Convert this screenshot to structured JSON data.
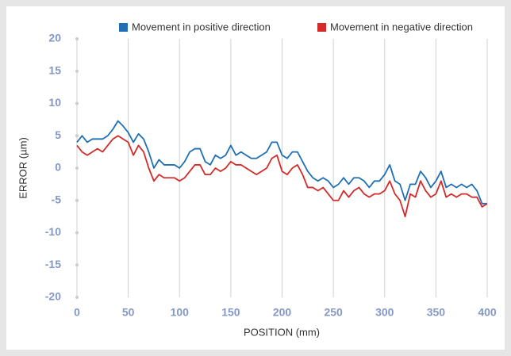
{
  "chart_data": {
    "type": "line",
    "x": [
      0,
      5,
      10,
      15,
      20,
      25,
      30,
      35,
      40,
      45,
      50,
      55,
      60,
      65,
      70,
      75,
      80,
      85,
      90,
      95,
      100,
      105,
      110,
      115,
      120,
      125,
      130,
      135,
      140,
      145,
      150,
      155,
      160,
      165,
      170,
      175,
      180,
      185,
      190,
      195,
      200,
      205,
      210,
      215,
      220,
      225,
      230,
      235,
      240,
      245,
      250,
      255,
      260,
      265,
      270,
      275,
      280,
      285,
      290,
      295,
      300,
      305,
      310,
      315,
      320,
      325,
      330,
      335,
      340,
      345,
      350,
      355,
      360,
      365,
      370,
      375,
      380,
      385,
      390,
      395,
      400
    ],
    "series": [
      {
        "name": "Movement in positive direction",
        "color": "#1f6fb5",
        "values": [
          4,
          5,
          4,
          4.5,
          4.5,
          4.5,
          5,
          6,
          7.3,
          6.5,
          5.5,
          4,
          5.3,
          4.5,
          2.5,
          0,
          1.3,
          0.5,
          0.5,
          0.5,
          0,
          1,
          2.5,
          3,
          3,
          1,
          0.5,
          2,
          1.5,
          2,
          3.5,
          2,
          2.5,
          2,
          1.5,
          1.5,
          2,
          2.5,
          4,
          4,
          2,
          1.5,
          2.5,
          2.5,
          1,
          -0.5,
          -1.5,
          -2,
          -1.5,
          -2,
          -3,
          -2.5,
          -1.5,
          -2.5,
          -1.5,
          -1.5,
          -2,
          -3,
          -2,
          -2,
          -1,
          0.5,
          -2,
          -2.5,
          -5,
          -2.5,
          -2.5,
          -0.5,
          -1.5,
          -3,
          -2,
          -0.5,
          -3,
          -2.5,
          -3,
          -2.5,
          -3,
          -2.5,
          -3.5,
          -5.5,
          -5.5
        ]
      },
      {
        "name": "Movement in negative direction",
        "color": "#d42a2a",
        "values": [
          3.5,
          2.5,
          2,
          2.5,
          3,
          2.5,
          3.5,
          4.5,
          5,
          4.5,
          4,
          2,
          3.5,
          2.5,
          0,
          -2,
          -1,
          -1.5,
          -1.5,
          -1.5,
          -2,
          -1.5,
          -0.5,
          0.5,
          0.5,
          -1,
          -1,
          0,
          -0.5,
          0,
          1,
          0.5,
          0.5,
          0,
          -0.5,
          -1,
          -0.5,
          0,
          1.5,
          2,
          -0.5,
          -1,
          0,
          0.5,
          -1,
          -3,
          -3,
          -3.5,
          -3,
          -4,
          -5,
          -5,
          -3.5,
          -4.5,
          -3.5,
          -3,
          -4,
          -4.5,
          -4,
          -4,
          -3.5,
          -2,
          -4,
          -5,
          -7.5,
          -4,
          -4.5,
          -2,
          -3.5,
          -4.5,
          -4,
          -2,
          -4.5,
          -4,
          -4.5,
          -4,
          -4,
          -4.5,
          -4.5,
          -6,
          -5.5
        ]
      }
    ],
    "xlabel": "POSITION (mm)",
    "ylabel": "ERROR (µm)",
    "xlim": [
      0,
      400
    ],
    "xticks": [
      0,
      50,
      100,
      150,
      200,
      250,
      300,
      350,
      400
    ],
    "ylim": [
      -20,
      20
    ],
    "yticks": [
      -20,
      -15,
      -10,
      -5,
      0,
      5,
      10,
      15,
      20
    ],
    "grid": "x",
    "legend": "top"
  }
}
